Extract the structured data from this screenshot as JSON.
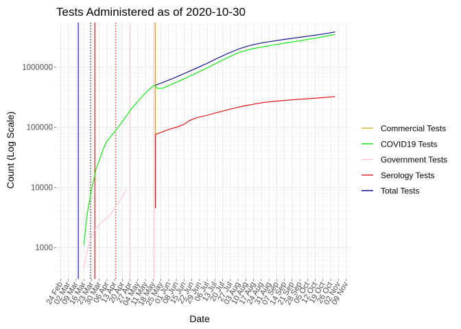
{
  "chart_data": {
    "type": "line",
    "title": "Tests Administered as of 2020-10-30",
    "xlabel": "Date",
    "ylabel": "Count (Log Scale)",
    "y_scale": "log10",
    "ylim": [
      300,
      5500000
    ],
    "y_ticks": [
      {
        "value": 1000,
        "label": "1000"
      },
      {
        "value": 10000,
        "label": "10000"
      },
      {
        "value": 100000,
        "label": "100000"
      },
      {
        "value": 1000000,
        "label": "1000000"
      }
    ],
    "xlim": [
      "2020-02-20",
      "2020-11-13"
    ],
    "x_ticks": [
      {
        "date": "2020-02-24",
        "label": "24 Feb"
      },
      {
        "date": "2020-03-02",
        "label": "02 Mar"
      },
      {
        "date": "2020-03-09",
        "label": "09 Mar"
      },
      {
        "date": "2020-03-16",
        "label": "16 Mar"
      },
      {
        "date": "2020-03-23",
        "label": "23 Mar"
      },
      {
        "date": "2020-03-30",
        "label": "30 Mar"
      },
      {
        "date": "2020-04-06",
        "label": "06 Apr"
      },
      {
        "date": "2020-04-13",
        "label": "13 Apr"
      },
      {
        "date": "2020-04-20",
        "label": "20 Apr"
      },
      {
        "date": "2020-04-27",
        "label": "27 Apr"
      },
      {
        "date": "2020-05-04",
        "label": "04 May"
      },
      {
        "date": "2020-05-11",
        "label": "11 May"
      },
      {
        "date": "2020-05-18",
        "label": "18 May"
      },
      {
        "date": "2020-05-25",
        "label": "25 May"
      },
      {
        "date": "2020-06-01",
        "label": "01 Jun"
      },
      {
        "date": "2020-06-08",
        "label": "08 Jun"
      },
      {
        "date": "2020-06-15",
        "label": "15 Jun"
      },
      {
        "date": "2020-06-22",
        "label": "22 Jun"
      },
      {
        "date": "2020-06-29",
        "label": "29 Jun"
      },
      {
        "date": "2020-07-06",
        "label": "06 Jul"
      },
      {
        "date": "2020-07-13",
        "label": "13 Jul"
      },
      {
        "date": "2020-07-20",
        "label": "20 Jul"
      },
      {
        "date": "2020-07-27",
        "label": "27 Jul"
      },
      {
        "date": "2020-08-03",
        "label": "03 Aug"
      },
      {
        "date": "2020-08-10",
        "label": "10 Aug"
      },
      {
        "date": "2020-08-17",
        "label": "17 Aug"
      },
      {
        "date": "2020-08-24",
        "label": "24 Aug"
      },
      {
        "date": "2020-08-31",
        "label": "31 Aug"
      },
      {
        "date": "2020-09-07",
        "label": "07 Sep"
      },
      {
        "date": "2020-09-14",
        "label": "14 Sep"
      },
      {
        "date": "2020-09-21",
        "label": "21 Sep"
      },
      {
        "date": "2020-09-28",
        "label": "28 Sep"
      },
      {
        "date": "2020-10-05",
        "label": "05 Oct"
      },
      {
        "date": "2020-10-12",
        "label": "12 Oct"
      },
      {
        "date": "2020-10-19",
        "label": "19 Oct"
      },
      {
        "date": "2020-10-26",
        "label": "26 Oct"
      },
      {
        "date": "2020-11-02",
        "label": "02 Nov"
      },
      {
        "date": "2020-11-09",
        "label": "09 Nov"
      }
    ],
    "grid": true,
    "legend_position": "right",
    "series": [
      {
        "name": "Commercial Tests",
        "color": "#ccad00",
        "points": [
          [
            "2020-05-20",
            4500
          ],
          [
            "2020-05-20",
            5500000
          ]
        ]
      },
      {
        "name": "COVID19 Tests",
        "color": "#00e600",
        "points": [
          [
            "2020-03-16",
            1100
          ],
          [
            "2020-03-17",
            1600
          ],
          [
            "2020-03-18",
            2400
          ],
          [
            "2020-03-19",
            3500
          ],
          [
            "2020-03-20",
            4600
          ],
          [
            "2020-03-22",
            7000
          ],
          [
            "2020-03-23",
            9500
          ],
          [
            "2020-03-25",
            13000
          ],
          [
            "2020-03-27",
            20000
          ],
          [
            "2020-03-30",
            28000
          ],
          [
            "2020-04-02",
            40000
          ],
          [
            "2020-04-05",
            55000
          ],
          [
            "2020-04-08",
            65000
          ],
          [
            "2020-04-12",
            80000
          ],
          [
            "2020-04-17",
            105000
          ],
          [
            "2020-04-22",
            140000
          ],
          [
            "2020-04-27",
            190000
          ],
          [
            "2020-05-02",
            245000
          ],
          [
            "2020-05-07",
            310000
          ],
          [
            "2020-05-12",
            390000
          ],
          [
            "2020-05-17",
            470000
          ],
          [
            "2020-05-19",
            500000
          ],
          [
            "2020-05-22",
            440000
          ],
          [
            "2020-05-27",
            450000
          ],
          [
            "2020-06-05",
            530000
          ],
          [
            "2020-06-15",
            640000
          ],
          [
            "2020-06-25",
            780000
          ],
          [
            "2020-07-05",
            950000
          ],
          [
            "2020-07-15",
            1180000
          ],
          [
            "2020-07-25",
            1450000
          ],
          [
            "2020-08-04",
            1760000
          ],
          [
            "2020-08-14",
            1980000
          ],
          [
            "2020-08-24",
            2150000
          ],
          [
            "2020-09-03",
            2320000
          ],
          [
            "2020-09-13",
            2480000
          ],
          [
            "2020-09-23",
            2650000
          ],
          [
            "2020-10-03",
            2850000
          ],
          [
            "2020-10-13",
            3050000
          ],
          [
            "2020-10-23",
            3300000
          ],
          [
            "2020-10-30",
            3500000
          ]
        ]
      },
      {
        "name": "Government Tests",
        "color": "#ffc0cb",
        "points": [
          [
            "2020-03-16",
            450
          ],
          [
            "2020-03-18",
            700
          ],
          [
            "2020-03-21",
            1200
          ],
          [
            "2020-03-24",
            1700
          ],
          [
            "2020-03-27",
            2100
          ],
          [
            "2020-03-31",
            2500
          ],
          [
            "2020-04-04",
            2900
          ],
          [
            "2020-04-09",
            3500
          ],
          [
            "2020-04-14",
            4800
          ],
          [
            "2020-04-19",
            6500
          ],
          [
            "2020-04-24",
            9500
          ]
        ]
      },
      {
        "name": "Serology Tests",
        "color": "#e00000",
        "points": [
          [
            "2020-05-20",
            4500
          ],
          [
            "2020-05-20",
            76000
          ],
          [
            "2020-05-25",
            82000
          ],
          [
            "2020-06-01",
            92000
          ],
          [
            "2020-06-08",
            100000
          ],
          [
            "2020-06-15",
            112000
          ],
          [
            "2020-06-20",
            130000
          ],
          [
            "2020-06-27",
            145000
          ],
          [
            "2020-07-07",
            160000
          ],
          [
            "2020-07-17",
            180000
          ],
          [
            "2020-07-27",
            200000
          ],
          [
            "2020-08-06",
            222000
          ],
          [
            "2020-08-16",
            240000
          ],
          [
            "2020-08-26",
            258000
          ],
          [
            "2020-09-05",
            270000
          ],
          [
            "2020-09-15",
            280000
          ],
          [
            "2020-09-25",
            290000
          ],
          [
            "2020-10-05",
            298000
          ],
          [
            "2020-10-15",
            307000
          ],
          [
            "2020-10-25",
            318000
          ],
          [
            "2020-10-30",
            324000
          ]
        ]
      },
      {
        "name": "Total Tests",
        "color": "#00008b",
        "points": [
          [
            "2020-05-20",
            500000
          ],
          [
            "2020-05-27",
            560000
          ],
          [
            "2020-06-05",
            650000
          ],
          [
            "2020-06-15",
            780000
          ],
          [
            "2020-06-25",
            940000
          ],
          [
            "2020-07-05",
            1140000
          ],
          [
            "2020-07-15",
            1400000
          ],
          [
            "2020-07-25",
            1700000
          ],
          [
            "2020-08-04",
            2020000
          ],
          [
            "2020-08-14",
            2300000
          ],
          [
            "2020-08-24",
            2520000
          ],
          [
            "2020-09-03",
            2700000
          ],
          [
            "2020-09-13",
            2880000
          ],
          [
            "2020-09-23",
            3050000
          ],
          [
            "2020-10-03",
            3230000
          ],
          [
            "2020-10-13",
            3420000
          ],
          [
            "2020-10-23",
            3650000
          ],
          [
            "2020-10-30",
            3850000
          ]
        ]
      }
    ],
    "vertical_markers": [
      {
        "date": "2020-03-11",
        "color": "#0000ff",
        "style": "solid"
      },
      {
        "date": "2020-03-22",
        "color": "#000000",
        "style": "dotted"
      },
      {
        "date": "2020-03-26",
        "color": "#e00000",
        "style": "solid"
      },
      {
        "date": "2020-04-14",
        "color": "#e00000",
        "style": "dotted"
      },
      {
        "date": "2020-04-27",
        "color": "#ffc0cb",
        "style": "solid"
      },
      {
        "date": "2020-05-19",
        "color": "#ffc0cb",
        "style": "solid"
      }
    ]
  }
}
